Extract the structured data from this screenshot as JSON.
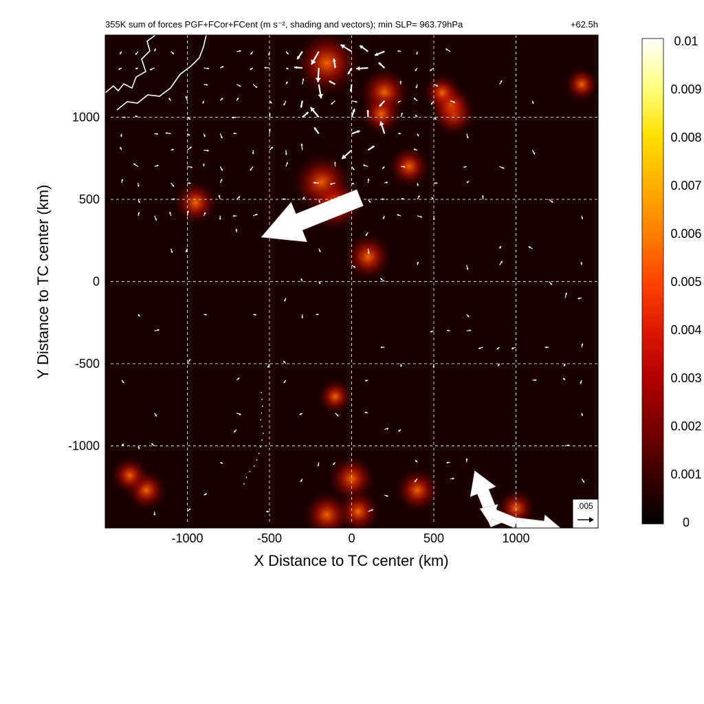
{
  "chart_data": {
    "type": "heatmap",
    "title": "355K sum of forces PGF+FCor+FCent (m s⁻², shading and vectors); min SLP= 963.79hPa",
    "time_label": "+62.5h",
    "xlabel": "X Distance to TC center (km)",
    "ylabel": "Y Distance to TC center (km)",
    "xlim": [
      -1500,
      1500
    ],
    "ylim": [
      -1500,
      1500
    ],
    "x_ticks": [
      -1000,
      -500,
      0,
      500,
      1000
    ],
    "y_ticks": [
      1000,
      500,
      0,
      -500,
      -1000
    ],
    "x_tick_labels": [
      "-1000",
      "-500",
      "0",
      "500",
      "1000"
    ],
    "y_tick_labels": [
      "1000",
      "500",
      "0",
      "-500",
      "-1000"
    ],
    "grid": "dashed",
    "colorbar": {
      "min": 0,
      "max": 0.01,
      "ticks": [
        "0.01",
        "0.009",
        "0.008",
        "0.007",
        "0.006",
        "0.005",
        "0.004",
        "0.003",
        "0.002",
        "0.001",
        "0"
      ],
      "colors": [
        "#000000",
        "#3a0000",
        "#7a0000",
        "#b30000",
        "#e01800",
        "#ff4400",
        "#ff8000",
        "#ffb000",
        "#ffe000",
        "#ffff80",
        "#ffffff"
      ]
    },
    "reference_vector": {
      "label": ".005",
      "magnitude": 0.005
    },
    "large_vectors": [
      {
        "x": 50,
        "y": 510,
        "u": -0.0055,
        "v": -0.0022
      },
      {
        "x": 880,
        "y": -1480,
        "u": -0.0012,
        "v": 0.003
      },
      {
        "x": 1000,
        "y": -1470,
        "u": -0.002,
        "v": 0.0008
      },
      {
        "x": 1000,
        "y": -1470,
        "u": 0.0025,
        "v": -0.0003
      }
    ],
    "hotspots": [
      {
        "x": -150,
        "y": 1330,
        "strength": 0.008
      },
      {
        "x": 200,
        "y": 1150,
        "strength": 0.0055
      },
      {
        "x": -180,
        "y": 600,
        "strength": 0.007
      },
      {
        "x": -100,
        "y": 470,
        "strength": 0.006
      },
      {
        "x": 620,
        "y": 1020,
        "strength": 0.0045
      },
      {
        "x": 350,
        "y": 700,
        "strength": 0.004
      },
      {
        "x": 180,
        "y": 1020,
        "strength": 0.004
      },
      {
        "x": 100,
        "y": 150,
        "strength": 0.005
      },
      {
        "x": -950,
        "y": 480,
        "strength": 0.0045
      },
      {
        "x": 0,
        "y": -1200,
        "strength": 0.005
      },
      {
        "x": 40,
        "y": -1400,
        "strength": 0.0045
      },
      {
        "x": -150,
        "y": -1420,
        "strength": 0.005
      },
      {
        "x": 400,
        "y": -1270,
        "strength": 0.0045
      },
      {
        "x": -1250,
        "y": -1270,
        "strength": 0.004
      },
      {
        "x": -1350,
        "y": -1180,
        "strength": 0.0035
      },
      {
        "x": -100,
        "y": -700,
        "strength": 0.003
      },
      {
        "x": 1400,
        "y": 1200,
        "strength": 0.003
      },
      {
        "x": 1000,
        "y": -1380,
        "strength": 0.0035
      },
      {
        "x": 600,
        "y": 1080,
        "strength": 0.004
      },
      {
        "x": 550,
        "y": 1150,
        "strength": 0.0035
      }
    ]
  }
}
